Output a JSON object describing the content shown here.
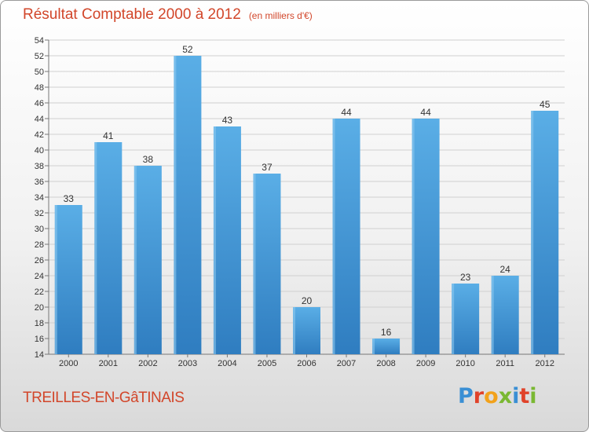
{
  "header": {
    "title": "Résultat Comptable 2000 à 2012",
    "subtitle": "(en milliers d'€)"
  },
  "footer": {
    "commune": "TREILLES-EN-GâTINAIS",
    "logo": "Proxiti"
  },
  "colors": {
    "title": "#d2462a",
    "bar_light": "#5aaee6",
    "bar_dark": "#2f7dc0",
    "logo": [
      "#3a8fd4",
      "#e0432a",
      "#f2a21b",
      "#7ab832",
      "#3a8fd4",
      "#e0432a",
      "#7ab832"
    ]
  },
  "chart_data": {
    "type": "bar",
    "title": "Résultat Comptable 2000 à 2012",
    "subtitle": "(en milliers d'€)",
    "xlabel": "",
    "ylabel": "",
    "categories": [
      "2000",
      "2001",
      "2002",
      "2003",
      "2004",
      "2005",
      "2006",
      "2007",
      "2008",
      "2009",
      "2010",
      "2011",
      "2012"
    ],
    "values": [
      33,
      41,
      38,
      52,
      43,
      37,
      20,
      44,
      16,
      44,
      23,
      24,
      45
    ],
    "ylim": [
      14,
      54
    ],
    "yticks": [
      14,
      16,
      18,
      20,
      22,
      24,
      26,
      28,
      30,
      32,
      34,
      36,
      38,
      40,
      42,
      44,
      46,
      48,
      50,
      52,
      54
    ],
    "grid": true,
    "legend": "none"
  }
}
